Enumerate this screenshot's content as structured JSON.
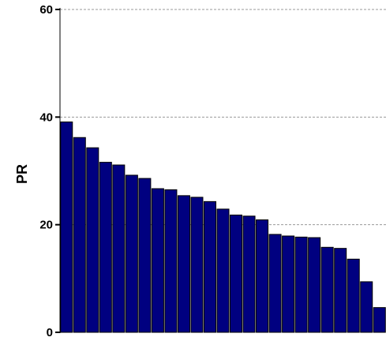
{
  "chart_data": {
    "type": "bar",
    "title": "",
    "xlabel": "",
    "ylabel": "PR",
    "ylim": [
      0,
      60
    ],
    "yticks": [
      0,
      20,
      40,
      60
    ],
    "ytick_labels": [
      "0",
      "20",
      "40",
      "60"
    ],
    "grid": true,
    "legend": "none",
    "bar_color": "#000080",
    "grid_color": "#999999",
    "categories": [
      "",
      "",
      "",
      "",
      "",
      "",
      "",
      "",
      "",
      "",
      "",
      "",
      "",
      "",
      "",
      "",
      "",
      "",
      "",
      "",
      "",
      "",
      "",
      "",
      ""
    ],
    "values": [
      39.1,
      36.2,
      34.3,
      31.6,
      31.1,
      29.2,
      28.6,
      26.7,
      26.5,
      25.4,
      25.1,
      24.3,
      22.9,
      21.8,
      21.6,
      20.9,
      18.2,
      17.9,
      17.7,
      17.6,
      15.8,
      15.6,
      13.6,
      9.4,
      4.6
    ]
  }
}
